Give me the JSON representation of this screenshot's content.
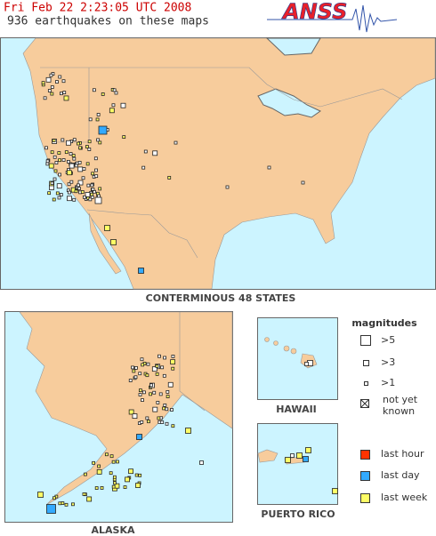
{
  "header": {
    "timestamp": "Fri Feb 22 2:23:05 UTC 2008",
    "count_text": "936 earthquakes on these maps",
    "logo": "ANSS"
  },
  "maps": {
    "conterminous": "CONTERMINOUS 48 STATES",
    "alaska": "ALASKA",
    "hawaii": "HAWAII",
    "puerto_rico": "PUERTO RICO"
  },
  "legend": {
    "magnitudes_title": "magnitudes",
    "mag5": ">5",
    "mag3": ">3",
    "mag1": ">1",
    "not_yet_known": [
      "not yet",
      "known"
    ],
    "last_hour": "last hour",
    "last_day": "last day",
    "last_week": "last week"
  }
}
